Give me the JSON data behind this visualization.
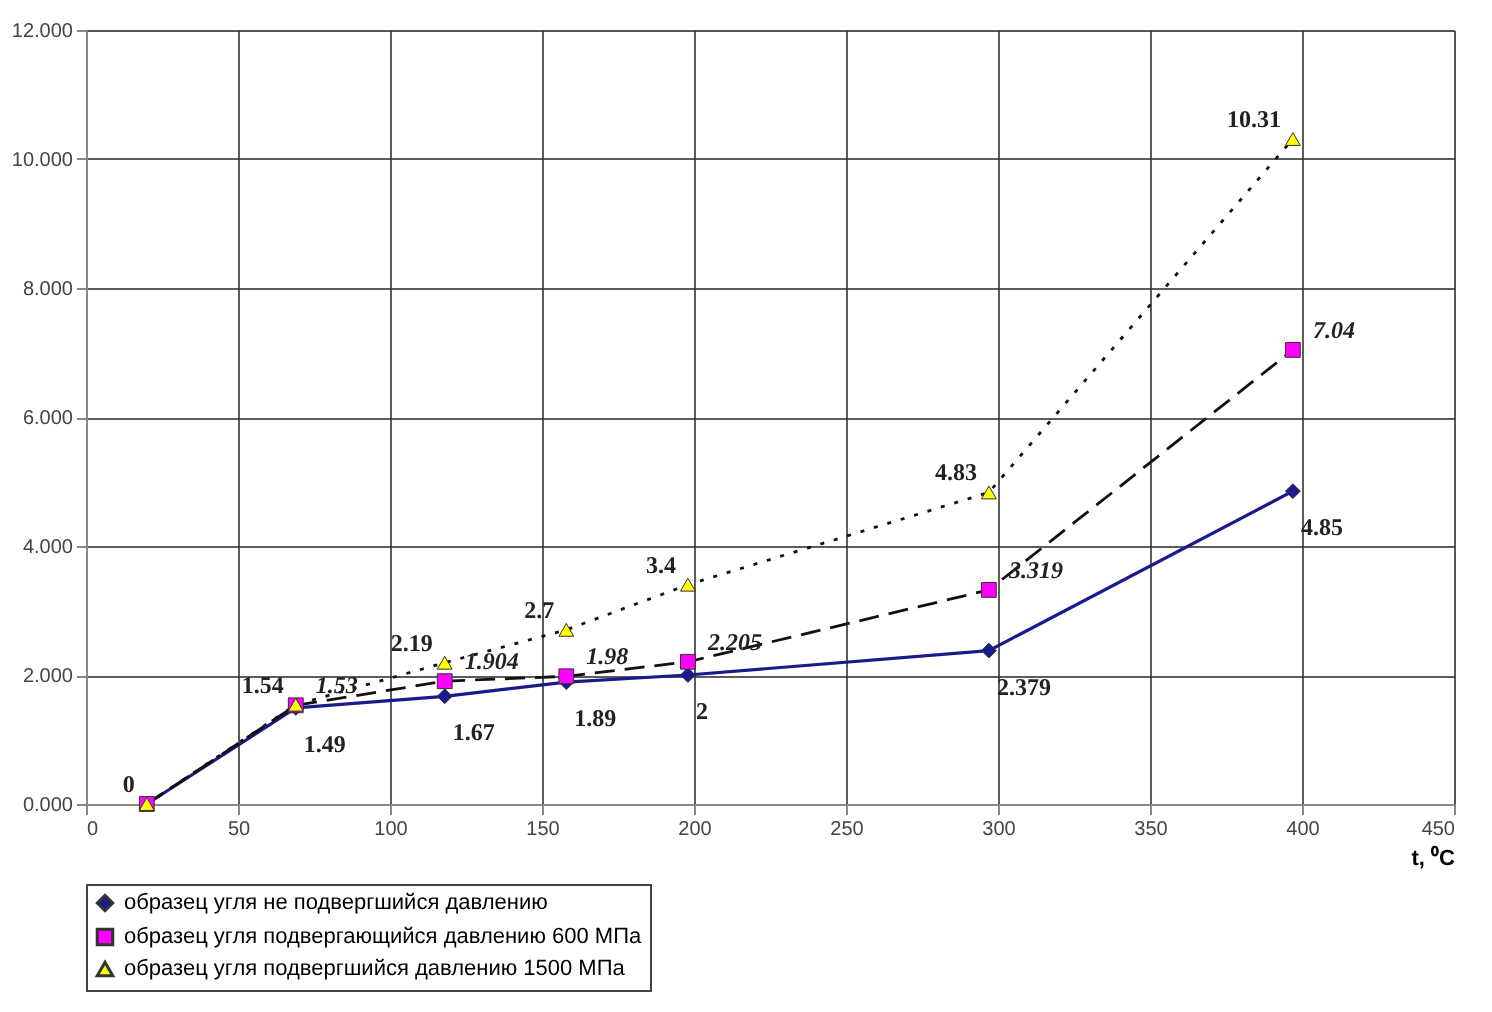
{
  "chart_data": {
    "type": "line",
    "xlabel": "t, ⁰C",
    "xlim": [
      0,
      450
    ],
    "xticks": [
      0,
      50,
      100,
      150,
      200,
      250,
      300,
      350,
      400,
      450
    ],
    "ylim": [
      0,
      12
    ],
    "yticks": [
      {
        "value": 0,
        "label": "0.000"
      },
      {
        "value": 2,
        "label": "2.000"
      },
      {
        "value": 4,
        "label": "4.000"
      },
      {
        "value": 6,
        "label": "6.000"
      },
      {
        "value": 8,
        "label": "8.000"
      },
      {
        "value": 10,
        "label": "10.000"
      },
      {
        "value": 12,
        "label": "12.000"
      }
    ],
    "grid": true,
    "legend": "bottom",
    "series": [
      {
        "name": "образец угля не подвергшийся давлению",
        "color": "#1a1a8c",
        "marker": "diamond",
        "line_style": "solid",
        "x": [
          20,
          69,
          118,
          158,
          198,
          297,
          397
        ],
        "values": [
          0,
          1.49,
          1.67,
          1.89,
          2,
          2.379,
          4.85
        ],
        "value_labels": [
          null,
          "1.49",
          "1.67",
          "1.89",
          "2",
          "2.379",
          "4.85"
        ]
      },
      {
        "name": "образец угля подвергающийся давлению 600 МПа",
        "color": "#ff00ff",
        "marker": "square",
        "line_style": "dashed",
        "x": [
          20,
          69,
          118,
          158,
          198,
          297,
          397
        ],
        "values": [
          0,
          1.53,
          1.904,
          1.98,
          2.205,
          3.319,
          7.04
        ],
        "value_labels": [
          null,
          "1.53",
          "1.904",
          "1.98",
          "2.205",
          "3.319",
          "7.04"
        ]
      },
      {
        "name": "образец угля подвергшийся давлению 1500 МПа",
        "color": "#ffff00",
        "marker": "triangle",
        "line_style": "dotted",
        "x": [
          20,
          69,
          118,
          158,
          198,
          297,
          397
        ],
        "values": [
          0,
          1.54,
          2.19,
          2.7,
          3.4,
          4.83,
          10.31
        ],
        "value_labels": [
          "0",
          "1.54",
          "2.19",
          "2.7",
          "3.4",
          "4.83",
          "10.31"
        ]
      }
    ]
  }
}
